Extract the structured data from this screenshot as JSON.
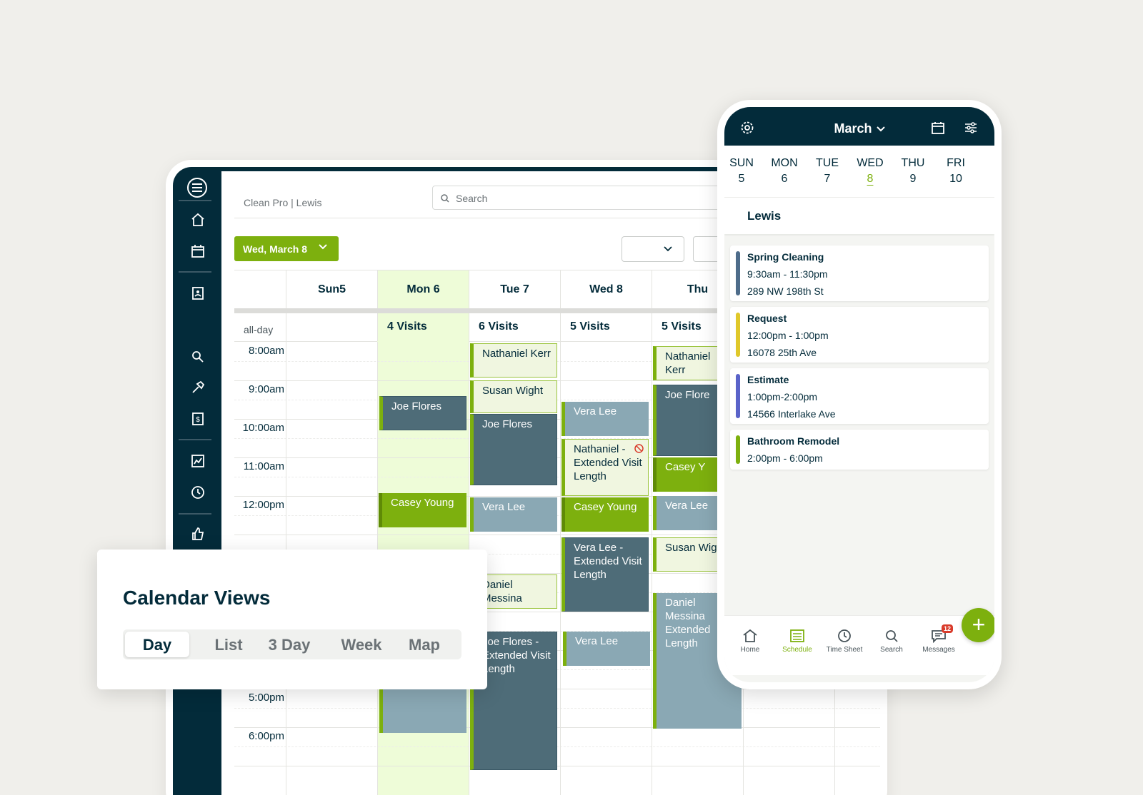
{
  "tablet": {
    "breadcrumb": "Clean Pro | Lewis",
    "search_placeholder": "Search",
    "date_button": "Wed, March  8",
    "columns": [
      "Sun5",
      "Mon 6",
      "Tue 7",
      "Wed 8",
      "Thu"
    ],
    "allday_label": "all-day",
    "visits": [
      "4 Visits",
      "6 Visits",
      "5 Visits",
      "5 Visits"
    ],
    "times": [
      "8:00am",
      "9:00am",
      "10:00am",
      "11:00am",
      "12:00pm",
      "5:00pm",
      "6:00pm"
    ],
    "events": {
      "mon_joe": "Joe Flores",
      "mon_casey": "Casey Young",
      "tue_nathaniel": "Nathaniel Kerr",
      "tue_susan": "Susan Wight",
      "tue_joe": "Joe Flores",
      "tue_vera": "Vera Lee",
      "tue_daniel": "Daniel Messina",
      "tue_joe_ext": "Joe Flores - Extended Visit Length",
      "wed_vera": "Vera Lee",
      "wed_nathaniel": "Nathaniel  - Extended Visit Length",
      "wed_casey": "Casey Young",
      "wed_vera_ext": "Vera Lee - Extended Visit Length",
      "wed_vera2": "Vera Lee",
      "thu_nathaniel": "Nathaniel Kerr",
      "thu_joe": "Joe Flore",
      "thu_casey": "Casey Y",
      "thu_vera": "Vera Lee",
      "thu_susan": "Susan Wight",
      "thu_daniel": "Daniel Messina Extended Length"
    }
  },
  "views_card": {
    "title": "Calendar Views",
    "options": [
      "Day",
      "List",
      "3 Day",
      "Week",
      "Map"
    ],
    "active": "Day"
  },
  "phone": {
    "month": "March",
    "days": [
      {
        "name": "SUN",
        "num": "5"
      },
      {
        "name": "MON",
        "num": "6"
      },
      {
        "name": "TUE",
        "num": "7"
      },
      {
        "name": "WED",
        "num": "8"
      },
      {
        "name": "THU",
        "num": "9"
      },
      {
        "name": "FRI",
        "num": "10"
      }
    ],
    "selected_day": "8",
    "person": "Lewis",
    "jobs": [
      {
        "title": "Spring Cleaning",
        "time": "9:30am - 11:30pm",
        "address": "289 NW 198th St",
        "color": "#4e6c8a"
      },
      {
        "title": "Request",
        "time": "12:00pm - 1:00pm",
        "address": "16078 25th Ave",
        "color": "#e0c82a"
      },
      {
        "title": "Estimate",
        "time": "1:00pm-2:00pm",
        "address": "14566 Interlake Ave",
        "color": "#5a63c9"
      },
      {
        "title": "Bathroom Remodel",
        "time": "2:00pm - 6:00pm",
        "address": "",
        "color": "#7db00e"
      }
    ],
    "nav": [
      "Home",
      "Schedule",
      "Time Sheet",
      "Search",
      "Messages"
    ],
    "active_nav": "Schedule",
    "messages_badge": "12",
    "fab_label": "+"
  },
  "colors": {
    "brand_dark": "#032b3a",
    "brand_green": "#7db00e"
  }
}
